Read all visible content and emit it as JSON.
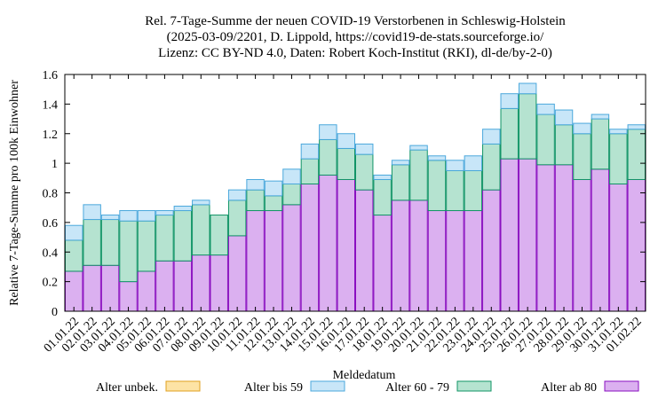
{
  "chart_data": {
    "type": "bar",
    "stacked": true,
    "title": [
      "Rel. 7-Tage-Summe der neuen COVID-19 Verstorbenen in Schleswig-Holstein",
      "(2025-03-09/2201, D. Lippold, https://covid19-de-stats.sourceforge.io/",
      "Lizenz: CC BY-ND 4.0, Daten: Robert Koch-Institut (RKI), dl-de/by-2-0)"
    ],
    "xlabel": "Meldedatum",
    "ylabel": "Relative 7-Tage-Summe pro 100k Einwohner",
    "ylim": [
      0,
      1.6
    ],
    "yticks": [
      "0",
      "0.2",
      "0.4",
      "0.6",
      "0.8",
      "1",
      "1.2",
      "1.4",
      "1.6"
    ],
    "grid": false,
    "legend_position": "bottom",
    "categories": [
      "01.01.22",
      "02.01.22",
      "03.01.22",
      "04.01.22",
      "05.01.22",
      "06.01.22",
      "07.01.22",
      "08.01.22",
      "09.01.22",
      "10.01.22",
      "11.01.22",
      "12.01.22",
      "13.01.22",
      "14.01.22",
      "15.01.22",
      "16.01.22",
      "17.01.22",
      "18.01.22",
      "19.01.22",
      "20.01.22",
      "21.01.22",
      "22.01.22",
      "23.01.22",
      "24.01.22",
      "25.01.22",
      "26.01.22",
      "27.01.22",
      "28.01.22",
      "29.01.22",
      "30.01.22",
      "31.01.22",
      "01.02.22"
    ],
    "tick_labels": [
      "01.01.22",
      "02.01.22",
      "03.01.22",
      "04.01.22",
      "05.01.22",
      "06.01.22",
      "07.01.22",
      "08.01.22",
      "09.01.22",
      "10.01.22",
      "11.01.22",
      "12.01.22",
      "13.01.22",
      "14.01.22",
      "15.01.22",
      "16.01.22",
      "17.01.22",
      "18.01.22",
      "19.01.22",
      "20.01.22",
      "21.01.22",
      "22.01.22",
      "23.01.22",
      "24.01.22",
      "25.01.22",
      "26.01.22",
      "27.01.22",
      "28.01.22",
      "29.01.22",
      "30.01.22",
      "31.01.22",
      "01.02.22"
    ],
    "series": [
      {
        "name": "Alter ab 80",
        "fill": "#dbb0f0",
        "stroke": "#8a0fc0",
        "values": [
          0.27,
          0.31,
          0.31,
          0.2,
          0.27,
          0.34,
          0.34,
          0.38,
          0.38,
          0.51,
          0.68,
          0.68,
          0.72,
          0.86,
          0.92,
          0.89,
          0.82,
          0.65,
          0.75,
          0.75,
          0.68,
          0.68,
          0.68,
          0.82,
          1.03,
          1.03,
          0.99,
          0.99,
          0.89,
          0.96,
          0.86,
          0.89
        ]
      },
      {
        "name": "Alter 60 - 79",
        "fill": "#b5e3d0",
        "stroke": "#119466",
        "values": [
          0.21,
          0.31,
          0.31,
          0.41,
          0.34,
          0.31,
          0.34,
          0.34,
          0.27,
          0.24,
          0.14,
          0.1,
          0.14,
          0.17,
          0.24,
          0.21,
          0.24,
          0.24,
          0.24,
          0.34,
          0.34,
          0.27,
          0.27,
          0.31,
          0.34,
          0.44,
          0.34,
          0.27,
          0.31,
          0.34,
          0.34,
          0.34
        ]
      },
      {
        "name": "Alter bis 59",
        "fill": "#c8e6f8",
        "stroke": "#4ba8dc",
        "values": [
          0.1,
          0.1,
          0.03,
          0.07,
          0.07,
          0.03,
          0.03,
          0.03,
          0.0,
          0.07,
          0.07,
          0.1,
          0.1,
          0.1,
          0.1,
          0.1,
          0.07,
          0.03,
          0.03,
          0.03,
          0.03,
          0.07,
          0.1,
          0.1,
          0.1,
          0.07,
          0.07,
          0.1,
          0.07,
          0.03,
          0.03,
          0.03
        ]
      },
      {
        "name": "Alter unbek.",
        "fill": "#fde3a5",
        "stroke": "#e0a020",
        "values": [
          0,
          0,
          0,
          0,
          0,
          0,
          0,
          0,
          0,
          0,
          0,
          0,
          0,
          0,
          0,
          0,
          0,
          0,
          0,
          0,
          0,
          0,
          0,
          0,
          0,
          0,
          0,
          0,
          0,
          0,
          0,
          0
        ]
      }
    ],
    "legend": [
      "Alter unbek.",
      "Alter bis 59",
      "Alter 60 - 79",
      "Alter ab 80"
    ]
  }
}
